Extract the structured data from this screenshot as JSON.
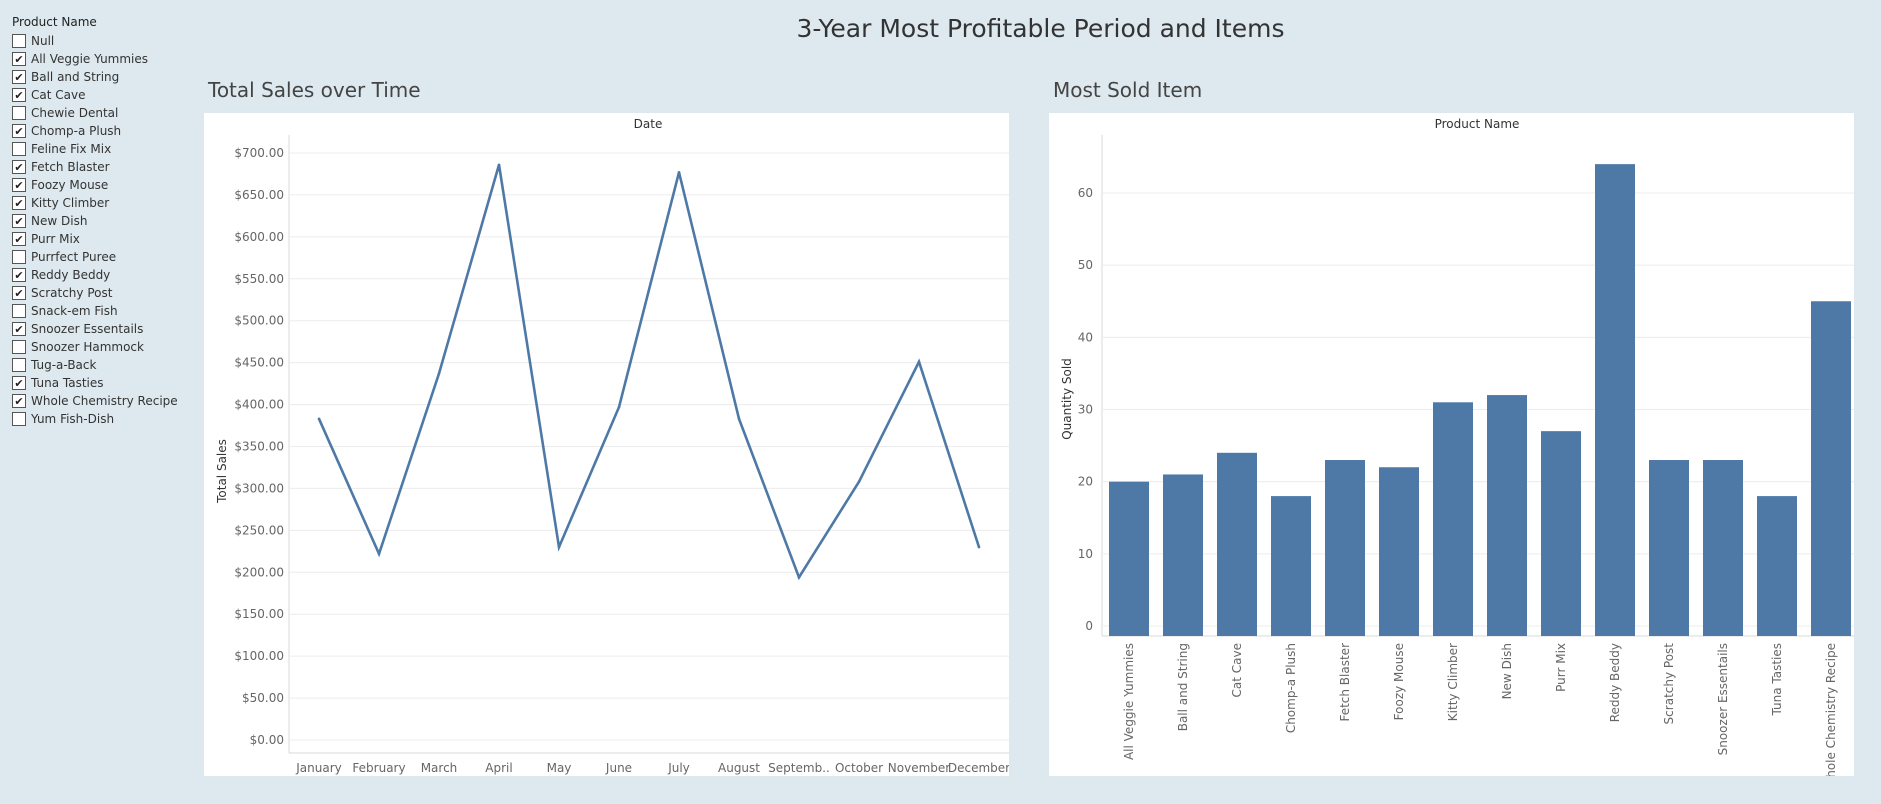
{
  "dashboard_title": "3-Year Most Profitable Period and Items",
  "filter": {
    "title": "Product Name",
    "items": [
      {
        "label": "Null",
        "checked": false
      },
      {
        "label": "All Veggie Yummies",
        "checked": true
      },
      {
        "label": "Ball and String",
        "checked": true
      },
      {
        "label": "Cat Cave",
        "checked": true
      },
      {
        "label": "Chewie Dental",
        "checked": false
      },
      {
        "label": "Chomp-a Plush",
        "checked": true
      },
      {
        "label": "Feline Fix Mix",
        "checked": false
      },
      {
        "label": "Fetch Blaster",
        "checked": true
      },
      {
        "label": "Foozy Mouse",
        "checked": true
      },
      {
        "label": "Kitty Climber",
        "checked": true
      },
      {
        "label": "New Dish",
        "checked": true
      },
      {
        "label": "Purr Mix",
        "checked": true
      },
      {
        "label": "Purrfect Puree",
        "checked": false
      },
      {
        "label": "Reddy Beddy",
        "checked": true
      },
      {
        "label": "Scratchy Post",
        "checked": true
      },
      {
        "label": "Snack-em Fish",
        "checked": false
      },
      {
        "label": "Snoozer Essentails",
        "checked": true
      },
      {
        "label": "Snoozer Hammock",
        "checked": false
      },
      {
        "label": "Tug-a-Back",
        "checked": false
      },
      {
        "label": "Tuna Tasties",
        "checked": true
      },
      {
        "label": "Whole Chemistry Recipe",
        "checked": true
      },
      {
        "label": "Yum Fish-Dish",
        "checked": false
      }
    ]
  },
  "chart_data": [
    {
      "type": "line",
      "title": "Total Sales over Time",
      "header": "Date",
      "ylabel": "Total Sales",
      "categories": [
        "January",
        "February",
        "March",
        "April",
        "May",
        "June",
        "July",
        "August",
        "Septemb..",
        "October",
        "November",
        "December"
      ],
      "values": [
        383,
        222,
        437,
        686,
        230,
        397,
        677,
        383,
        194,
        308,
        451,
        230
      ],
      "ylim": [
        0,
        720
      ],
      "yticks": [
        0,
        50,
        100,
        150,
        200,
        250,
        300,
        350,
        400,
        450,
        500,
        550,
        600,
        650,
        700
      ],
      "ytick_labels": [
        "$0.00",
        "$50.00",
        "$100.00",
        "$150.00",
        "$200.00",
        "$250.00",
        "$300.00",
        "$350.00",
        "$400.00",
        "$450.00",
        "$500.00",
        "$550.00",
        "$600.00",
        "$650.00",
        "$700.00"
      ],
      "color": "#4e79a7",
      "grid": true
    },
    {
      "type": "bar",
      "title": "Most Sold Item",
      "header": "Product Name",
      "ylabel": "Quantity Sold",
      "categories": [
        "All Veggie Yummies",
        "Ball and String",
        "Cat Cave",
        "Chomp-a Plush",
        "Fetch Blaster",
        "Foozy Mouse",
        "Kitty Climber",
        "New Dish",
        "Purr Mix",
        "Reddy Beddy",
        "Scratchy Post",
        "Snoozer Essentails",
        "Tuna Tasties",
        "Whole Chemistry Recipe"
      ],
      "values": [
        20,
        21,
        24,
        18,
        23,
        22,
        31,
        32,
        27,
        64,
        23,
        23,
        18,
        45
      ],
      "ylim": [
        -1,
        67
      ],
      "yticks": [
        0,
        10,
        20,
        30,
        40,
        50,
        60
      ],
      "ytick_labels": [
        "0",
        "10",
        "20",
        "30",
        "40",
        "50",
        "60"
      ],
      "color": "#4e79a7",
      "grid": true
    }
  ]
}
